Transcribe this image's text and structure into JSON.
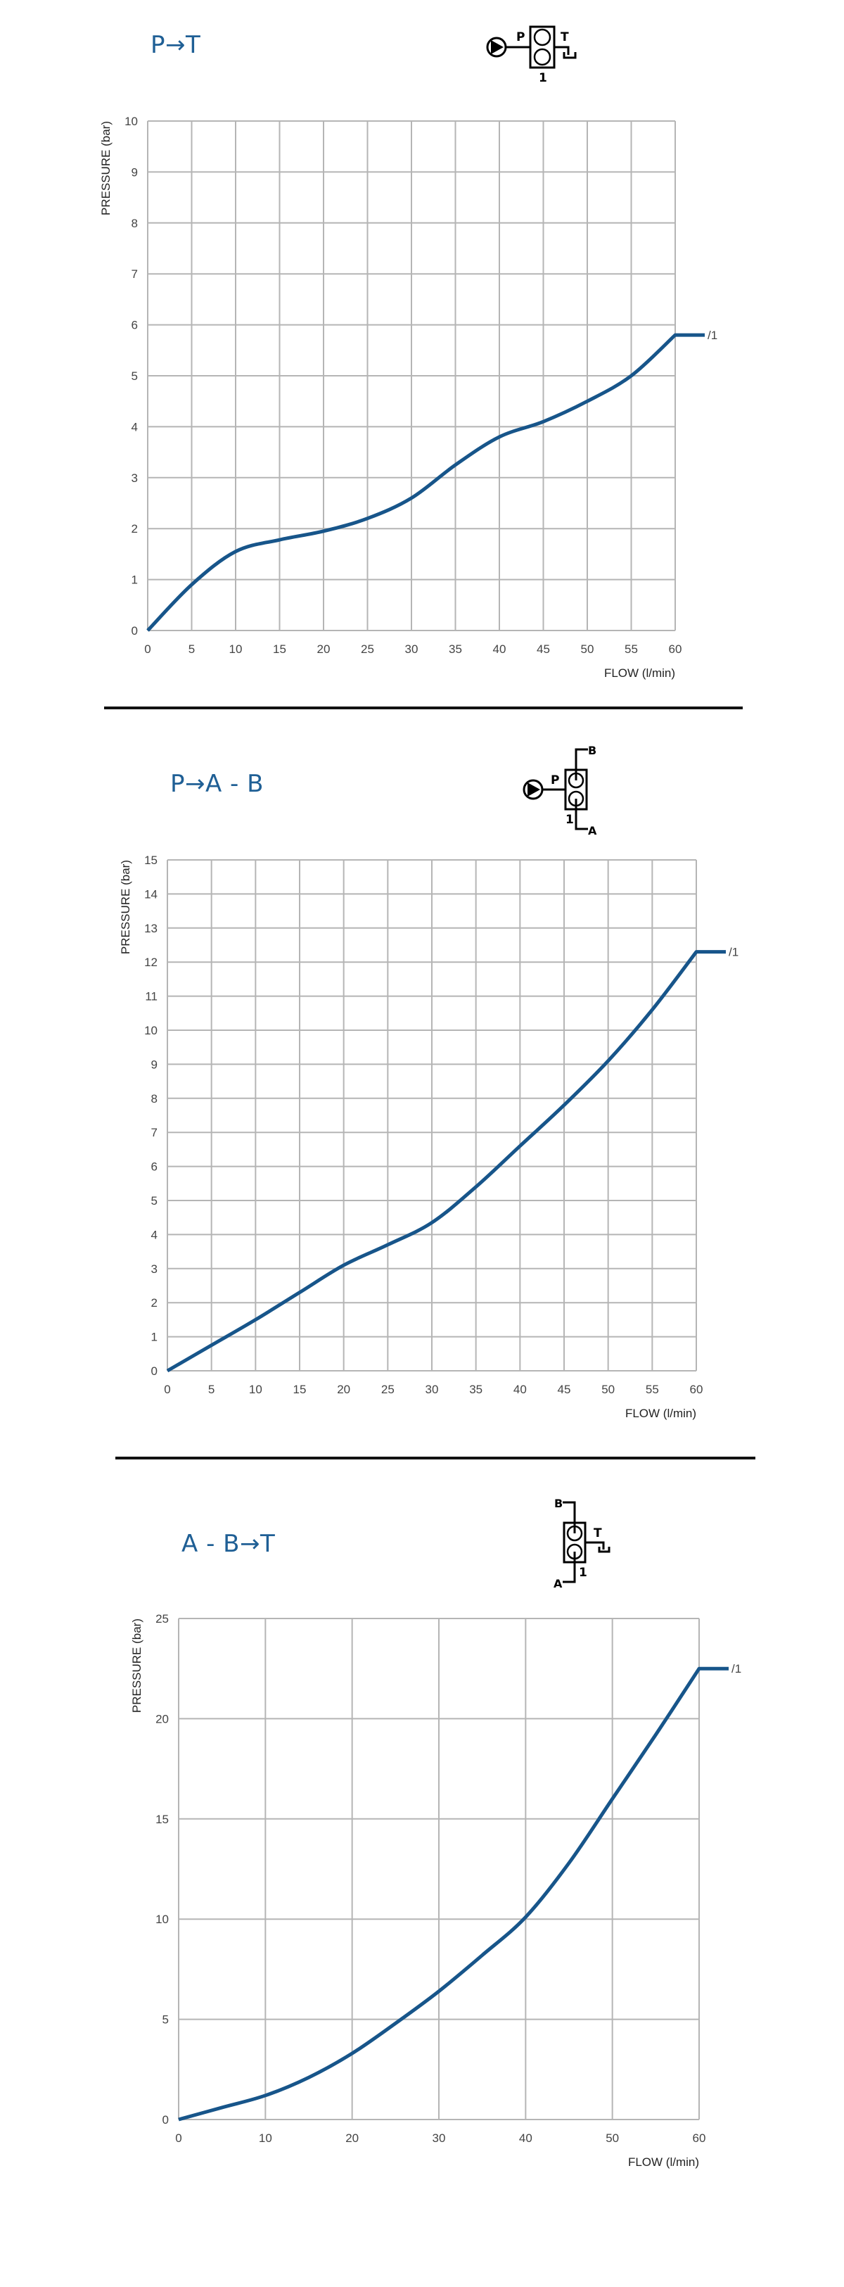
{
  "colors": {
    "curve": "#17558a",
    "title": "#1f5f95",
    "grid": "#b5b5b5"
  },
  "chart_data": [
    {
      "type": "line",
      "title": "P→T",
      "symbol": {
        "labels": [
          "P",
          "T",
          "1"
        ]
      },
      "xlabel": "FLOW (l/min)",
      "ylabel": "PRESSURE (bar)",
      "xlim": [
        0,
        60
      ],
      "ylim": [
        0,
        10
      ],
      "xticks": [
        0,
        5,
        10,
        15,
        20,
        25,
        30,
        35,
        40,
        45,
        50,
        55,
        60
      ],
      "yticks": [
        0,
        1,
        2,
        3,
        4,
        5,
        6,
        7,
        8,
        9,
        10
      ],
      "grid": true,
      "series": [
        {
          "name": "/1",
          "x": [
            0,
            5,
            10,
            15,
            20,
            25,
            30,
            35,
            40,
            45,
            50,
            55,
            60
          ],
          "y": [
            0,
            0.9,
            1.55,
            1.78,
            1.95,
            2.2,
            2.6,
            3.25,
            3.8,
            4.1,
            4.5,
            5.0,
            5.8
          ]
        }
      ]
    },
    {
      "type": "line",
      "title": "P→A - B",
      "symbol": {
        "labels": [
          "P",
          "B",
          "A",
          "1"
        ]
      },
      "xlabel": "FLOW (l/min)",
      "ylabel": "PRESSURE (bar)",
      "xlim": [
        0,
        60
      ],
      "ylim": [
        0,
        15
      ],
      "xticks": [
        0,
        5,
        10,
        15,
        20,
        25,
        30,
        35,
        40,
        45,
        50,
        55,
        60
      ],
      "yticks": [
        0,
        1,
        2,
        3,
        4,
        5,
        6,
        7,
        8,
        9,
        10,
        11,
        12,
        13,
        14,
        15
      ],
      "grid": true,
      "series": [
        {
          "name": "/1",
          "x": [
            0,
            5,
            10,
            15,
            20,
            25,
            30,
            35,
            40,
            45,
            50,
            55,
            60
          ],
          "y": [
            0,
            0.75,
            1.5,
            2.3,
            3.1,
            3.7,
            4.35,
            5.4,
            6.6,
            7.8,
            9.1,
            10.6,
            12.3
          ]
        }
      ]
    },
    {
      "type": "line",
      "title": "A - B→T",
      "symbol": {
        "labels": [
          "B",
          "T",
          "A",
          "1"
        ]
      },
      "xlabel": "FLOW (l/min)",
      "ylabel": "PRESSURE (bar)",
      "xlim": [
        0,
        60
      ],
      "ylim": [
        0,
        25
      ],
      "xticks": [
        0,
        10,
        20,
        30,
        40,
        50,
        60
      ],
      "yticks": [
        0,
        5,
        10,
        15,
        20,
        25
      ],
      "grid": true,
      "series": [
        {
          "name": "/1",
          "x": [
            0,
            5,
            10,
            15,
            20,
            25,
            30,
            35,
            40,
            45,
            50,
            55,
            60
          ],
          "y": [
            0,
            0.6,
            1.2,
            2.1,
            3.3,
            4.8,
            6.4,
            8.2,
            10.1,
            12.8,
            16,
            19.2,
            22.5
          ]
        }
      ]
    }
  ]
}
